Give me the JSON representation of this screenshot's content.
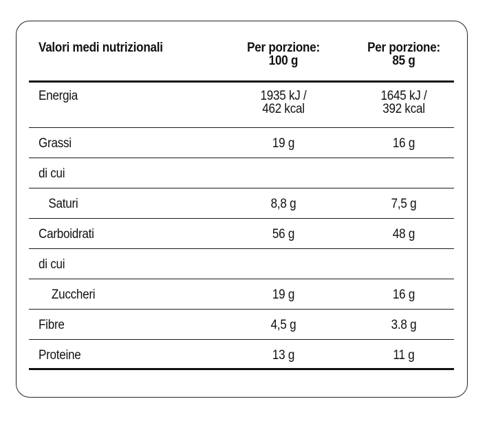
{
  "header": {
    "col1": "Valori medi nutrizionali",
    "col2_line1": "Per porzione:",
    "col2_line2": "100 g",
    "col3_line1": "Per porzione:",
    "col3_line2": "85 g"
  },
  "rows": {
    "energia": {
      "label": "Energia",
      "v1_line1": "1935 kJ /",
      "v1_line2": "462 kcal",
      "v2_line1": "1645 kJ /",
      "v2_line2": "392 kcal"
    },
    "grassi": {
      "label": "Grassi",
      "v1": "19 g",
      "v2": "16 g"
    },
    "dicui1": {
      "label": "di cui"
    },
    "saturi": {
      "label": "Saturi",
      "v1": "8,8 g",
      "v2": "7,5 g"
    },
    "carboidrati": {
      "label": "Carboidrati",
      "v1": "56 g",
      "v2": "48 g"
    },
    "dicui2": {
      "label": "di cui"
    },
    "zuccheri": {
      "label": "Zuccheri",
      "v1": "19 g",
      "v2": "16 g"
    },
    "fibre": {
      "label": "Fibre",
      "v1": "4,5 g",
      "v2": "3.8 g"
    },
    "proteine": {
      "label": "Proteine",
      "v1": "13 g",
      "v2": "11 g"
    }
  }
}
